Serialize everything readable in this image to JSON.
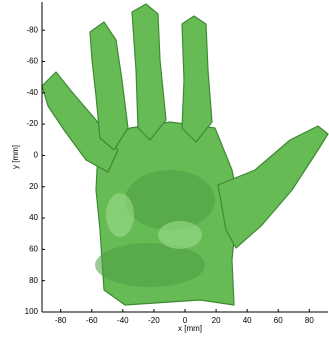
{
  "chart_data": {
    "type": "image",
    "xlabel": "x [mm]",
    "ylabel": "y [mm]",
    "xlim": [
      -92,
      92
    ],
    "xticks": [
      -80,
      -60,
      -40,
      -20,
      0,
      20,
      40,
      60,
      80
    ],
    "ylim": [
      -98,
      100
    ],
    "yticks": [
      -80,
      -60,
      -40,
      -20,
      0,
      20,
      40,
      60,
      80,
      100
    ],
    "y_reversed": true
  }
}
